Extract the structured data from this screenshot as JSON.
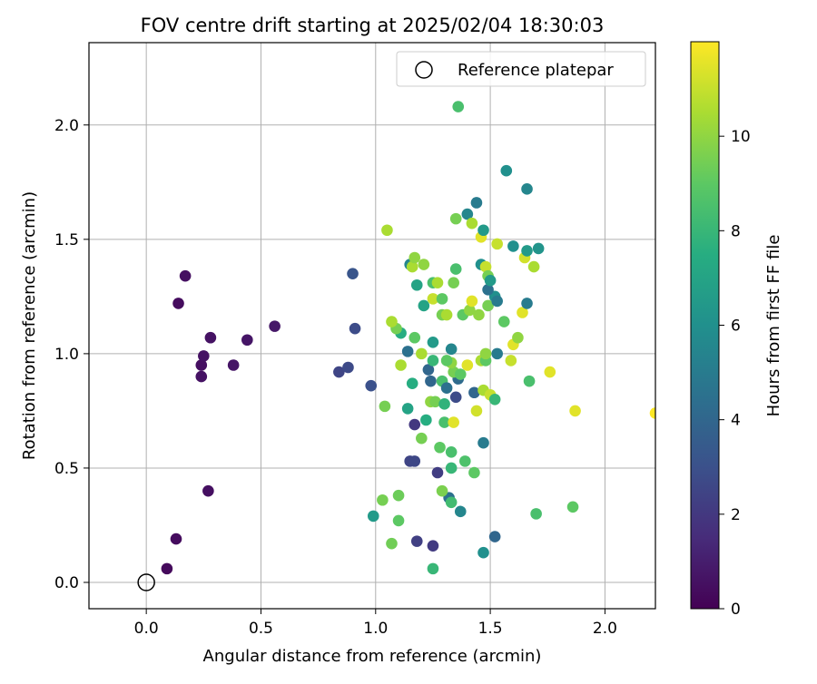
{
  "chart_data": {
    "type": "scatter",
    "title": "FOV centre drift starting at 2025/02/04 18:30:03",
    "xlabel": "Angular distance from reference (arcmin)",
    "ylabel": "Rotation from reference (arcmin)",
    "xlim": [
      -0.25,
      2.22
    ],
    "ylim": [
      -0.115,
      2.36
    ],
    "grid": true,
    "xticks": [
      {
        "v": 0.0,
        "label": "0.0"
      },
      {
        "v": 0.5,
        "label": "0.5"
      },
      {
        "v": 1.0,
        "label": "1.0"
      },
      {
        "v": 1.5,
        "label": "1.5"
      },
      {
        "v": 2.0,
        "label": "2.0"
      }
    ],
    "yticks": [
      {
        "v": 0.0,
        "label": "0.0"
      },
      {
        "v": 0.5,
        "label": "0.5"
      },
      {
        "v": 1.0,
        "label": "1.0"
      },
      {
        "v": 1.5,
        "label": "1.5"
      },
      {
        "v": 2.0,
        "label": "2.0"
      }
    ],
    "legend": {
      "position": "top-right",
      "label": "Reference platepar"
    },
    "reference_point": {
      "x": 0.0,
      "y": 0.0
    },
    "colorbar": {
      "label": "Hours from first FF file",
      "min": 0,
      "max": 12,
      "ticks": [
        {
          "v": 0,
          "label": "0"
        },
        {
          "v": 2,
          "label": "2"
        },
        {
          "v": 4,
          "label": "4"
        },
        {
          "v": 6,
          "label": "6"
        },
        {
          "v": 8,
          "label": "8"
        },
        {
          "v": 10,
          "label": "10"
        }
      ],
      "colormap": [
        "#440154",
        "#472c7a",
        "#3b518b",
        "#2c718e",
        "#21908d",
        "#27ad81",
        "#5cc863",
        "#aadc32",
        "#fde725"
      ]
    },
    "points": [
      [
        0.09,
        0.06,
        0.3
      ],
      [
        0.13,
        0.19,
        0.4
      ],
      [
        0.27,
        0.4,
        0.5
      ],
      [
        0.24,
        0.9,
        0.6
      ],
      [
        0.24,
        0.95,
        0.5
      ],
      [
        0.25,
        0.99,
        0.6
      ],
      [
        0.38,
        0.95,
        0.7
      ],
      [
        0.28,
        1.07,
        0.6
      ],
      [
        0.44,
        1.06,
        0.7
      ],
      [
        0.56,
        1.12,
        0.8
      ],
      [
        0.14,
        1.22,
        0.4
      ],
      [
        0.17,
        1.34,
        0.5
      ],
      [
        0.84,
        0.92,
        2.5
      ],
      [
        0.88,
        0.94,
        2.7
      ],
      [
        0.98,
        0.86,
        3.0
      ],
      [
        0.91,
        1.11,
        2.8
      ],
      [
        0.9,
        1.35,
        3.2
      ],
      [
        1.15,
        0.53,
        2.5
      ],
      [
        1.17,
        0.53,
        2.6
      ],
      [
        1.18,
        0.18,
        2.3
      ],
      [
        1.25,
        0.16,
        2.1
      ],
      [
        1.17,
        0.69,
        2.0
      ],
      [
        1.27,
        0.48,
        2.2
      ],
      [
        1.32,
        0.37,
        4.5
      ],
      [
        1.37,
        0.31,
        5.5
      ],
      [
        1.47,
        0.13,
        6.0
      ],
      [
        1.52,
        0.2,
        4.0
      ],
      [
        1.47,
        0.61,
        5.0
      ],
      [
        0.99,
        0.29,
        6.5
      ],
      [
        1.03,
        0.36,
        9.5
      ],
      [
        1.1,
        0.38,
        9.3
      ],
      [
        1.1,
        0.27,
        9.0
      ],
      [
        1.07,
        0.17,
        9.4
      ],
      [
        1.25,
        0.06,
        8.0
      ],
      [
        1.29,
        0.4,
        9.6
      ],
      [
        1.33,
        0.35,
        8.3
      ],
      [
        1.33,
        0.57,
        8.5
      ],
      [
        1.28,
        0.59,
        9.0
      ],
      [
        1.33,
        0.5,
        8.0
      ],
      [
        1.39,
        0.53,
        8.6
      ],
      [
        1.43,
        0.48,
        9.0
      ],
      [
        1.7,
        0.3,
        8.5
      ],
      [
        1.86,
        0.33,
        9.0
      ],
      [
        1.2,
        0.63,
        9.5
      ],
      [
        1.22,
        0.71,
        7.5
      ],
      [
        1.3,
        0.7,
        8.5
      ],
      [
        1.34,
        0.7,
        11.5
      ],
      [
        1.14,
        0.76,
        7.0
      ],
      [
        1.04,
        0.77,
        9.5
      ],
      [
        1.24,
        0.79,
        10.0
      ],
      [
        1.26,
        0.79,
        9.5
      ],
      [
        1.3,
        0.78,
        7.8
      ],
      [
        1.35,
        0.81,
        2.8
      ],
      [
        1.44,
        0.75,
        11.2
      ],
      [
        1.43,
        0.83,
        4.0
      ],
      [
        1.47,
        0.84,
        10.5
      ],
      [
        1.5,
        0.82,
        11.0
      ],
      [
        1.52,
        0.8,
        8.0
      ],
      [
        1.67,
        0.88,
        8.5
      ],
      [
        1.16,
        0.87,
        7.5
      ],
      [
        1.24,
        0.88,
        4.0
      ],
      [
        1.29,
        0.88,
        8.5
      ],
      [
        1.31,
        0.85,
        4.5
      ],
      [
        1.36,
        0.89,
        4.2
      ],
      [
        1.34,
        0.92,
        9.5
      ],
      [
        1.37,
        0.91,
        9.0
      ],
      [
        1.4,
        0.95,
        11.5
      ],
      [
        1.33,
        0.96,
        10.0
      ],
      [
        1.31,
        0.97,
        9.0
      ],
      [
        1.23,
        0.93,
        4.0
      ],
      [
        1.25,
        0.97,
        8.0
      ],
      [
        1.11,
        0.95,
        10.5
      ],
      [
        1.14,
        1.01,
        4.5
      ],
      [
        1.2,
        1.0,
        10.5
      ],
      [
        1.25,
        1.05,
        6.5
      ],
      [
        1.33,
        1.02,
        5.5
      ],
      [
        1.46,
        0.97,
        10.5
      ],
      [
        1.48,
        0.97,
        9.0
      ],
      [
        1.48,
        1.0,
        10.0
      ],
      [
        1.53,
        1.0,
        5.0
      ],
      [
        1.59,
        0.97,
        11.0
      ],
      [
        1.6,
        1.04,
        11.5
      ],
      [
        1.62,
        1.07,
        10.0
      ],
      [
        1.76,
        0.92,
        11.5
      ],
      [
        1.87,
        0.75,
        11.5
      ],
      [
        2.22,
        0.74,
        12.0
      ],
      [
        1.11,
        1.09,
        7.5
      ],
      [
        1.09,
        1.11,
        9.5
      ],
      [
        1.07,
        1.14,
        10.5
      ],
      [
        1.17,
        1.07,
        9.0
      ],
      [
        1.21,
        1.21,
        7.0
      ],
      [
        1.18,
        1.3,
        7.0
      ],
      [
        1.25,
        1.24,
        11.0
      ],
      [
        1.29,
        1.17,
        9.5
      ],
      [
        1.31,
        1.17,
        10.5
      ],
      [
        1.38,
        1.17,
        9.0
      ],
      [
        1.41,
        1.19,
        10.0
      ],
      [
        1.42,
        1.23,
        11.5
      ],
      [
        1.45,
        1.17,
        10.0
      ],
      [
        1.49,
        1.21,
        9.5
      ],
      [
        1.52,
        1.25,
        6.0
      ],
      [
        1.53,
        1.23,
        5.0
      ],
      [
        1.56,
        1.14,
        9.0
      ],
      [
        1.64,
        1.18,
        11.5
      ],
      [
        1.66,
        1.22,
        5.0
      ],
      [
        1.15,
        1.39,
        5.5
      ],
      [
        1.16,
        1.38,
        10.5
      ],
      [
        1.17,
        1.42,
        10.0
      ],
      [
        1.21,
        1.39,
        10.0
      ],
      [
        1.25,
        1.31,
        8.5
      ],
      [
        1.27,
        1.31,
        10.5
      ],
      [
        1.29,
        1.24,
        9.0
      ],
      [
        1.34,
        1.31,
        9.5
      ],
      [
        1.35,
        1.37,
        8.5
      ],
      [
        1.46,
        1.39,
        6.0
      ],
      [
        1.48,
        1.38,
        11.0
      ],
      [
        1.49,
        1.34,
        9.5
      ],
      [
        1.49,
        1.28,
        4.5
      ],
      [
        1.5,
        1.32,
        6.5
      ],
      [
        1.05,
        1.54,
        10.5
      ],
      [
        1.35,
        1.59,
        9.5
      ],
      [
        1.4,
        1.61,
        5.5
      ],
      [
        1.42,
        1.57,
        10.5
      ],
      [
        1.44,
        1.66,
        5.0
      ],
      [
        1.46,
        1.51,
        11.5
      ],
      [
        1.47,
        1.54,
        6.5
      ],
      [
        1.53,
        1.48,
        11.0
      ],
      [
        1.6,
        1.47,
        6.0
      ],
      [
        1.65,
        1.42,
        11.2
      ],
      [
        1.66,
        1.45,
        6.5
      ],
      [
        1.69,
        1.38,
        10.5
      ],
      [
        1.71,
        1.46,
        6.2
      ],
      [
        1.57,
        1.8,
        6.0
      ],
      [
        1.66,
        1.72,
        5.5
      ],
      [
        1.36,
        2.08,
        8.5
      ]
    ]
  }
}
